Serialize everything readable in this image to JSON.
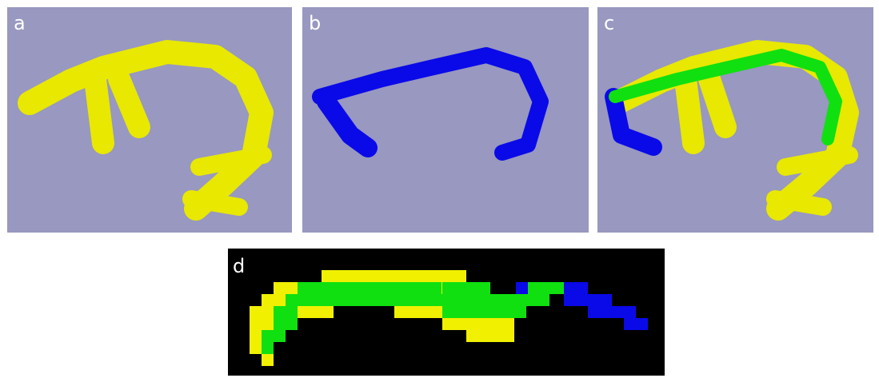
{
  "panels": [
    {
      "label": "a"
    },
    {
      "label": "b"
    },
    {
      "label": "c"
    },
    {
      "label": "d"
    }
  ]
}
